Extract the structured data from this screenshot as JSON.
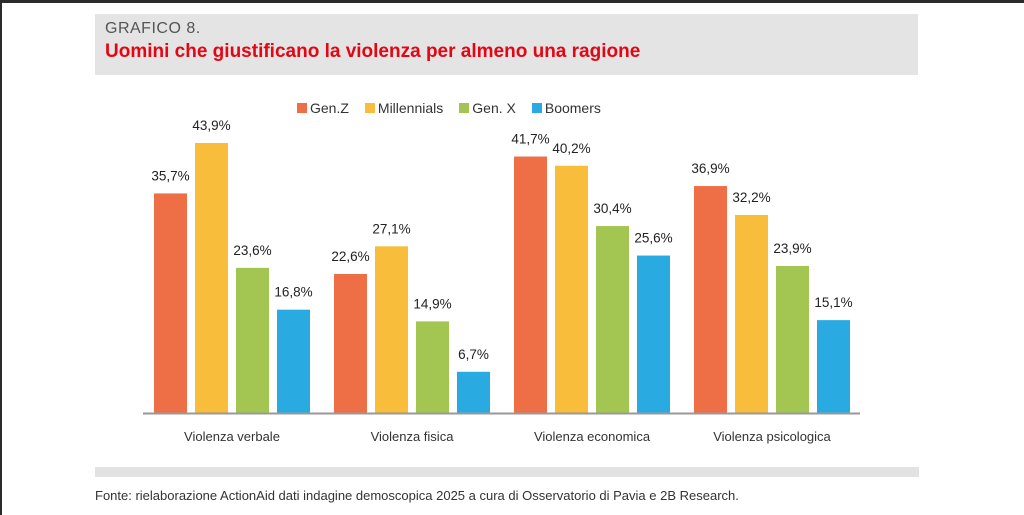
{
  "header": {
    "kicker": "GRAFICO 8.",
    "title": "Uomini che giustificano la violenza per almeno una ragione"
  },
  "source": "Fonte: rielaborazione ActionAid dati indagine demoscopica 2025 a cura di Osservatorio di Pavia e 2B Research.",
  "chart_data": {
    "type": "bar",
    "title": "Uomini che giustificano la violenza per almeno una ragione",
    "categories": [
      "Violenza verbale",
      "Violenza fisica",
      "Violenza economica",
      "Violenza psicologica"
    ],
    "series": [
      {
        "name": "Gen.Z",
        "color": "#EE6E46",
        "values": [
          35.7,
          22.6,
          41.7,
          36.9
        ],
        "labels": [
          "35,7%",
          "22,6%",
          "41,7%",
          "36,9%"
        ]
      },
      {
        "name": "Millennials",
        "color": "#F8BD3A",
        "values": [
          43.9,
          27.1,
          40.2,
          32.2
        ],
        "labels": [
          "43,9%",
          "27,1%",
          "40,2%",
          "32,2%"
        ]
      },
      {
        "name": "Gen. X",
        "color": "#A3C652",
        "values": [
          23.6,
          14.9,
          30.4,
          23.9
        ],
        "labels": [
          "23,6%",
          "14,9%",
          "30,4%",
          "23,9%"
        ]
      },
      {
        "name": "Boomers",
        "color": "#29ABE2",
        "values": [
          16.8,
          6.7,
          25.6,
          15.1
        ],
        "labels": [
          "16,8%",
          "6,7%",
          "25,6%",
          "15,1%"
        ]
      }
    ],
    "xlabel": "",
    "ylabel": "",
    "ylim": [
      0,
      45
    ],
    "grid": false,
    "legend": "top-center"
  }
}
